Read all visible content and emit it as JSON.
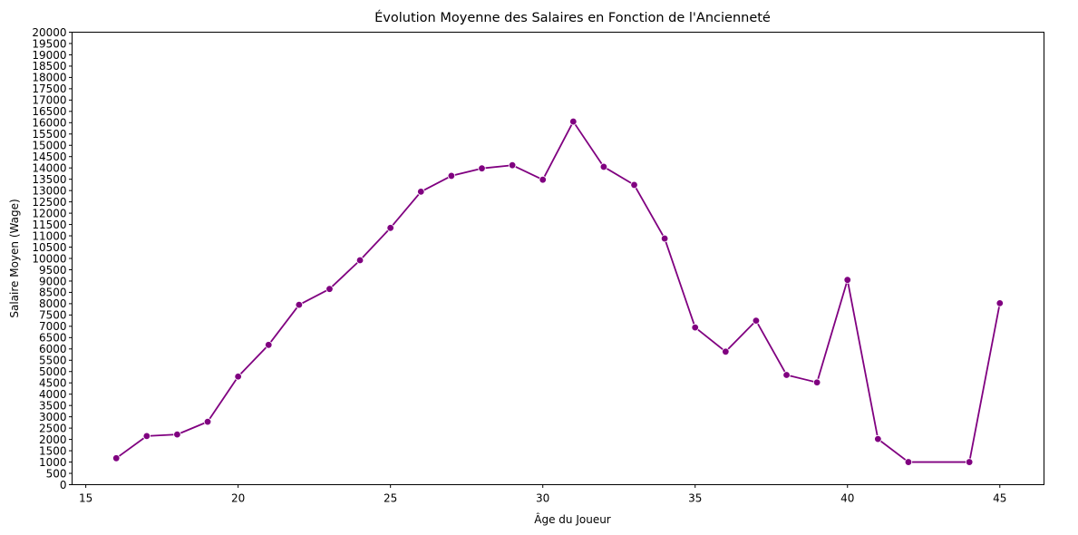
{
  "chart_data": {
    "type": "line",
    "title": "Évolution Moyenne des Salaires en Fonction de l'Ancienneté",
    "xlabel": "Âge du Joueur",
    "ylabel": "Salaire Moyen (Wage)",
    "xlim": [
      14.55,
      46.45
    ],
    "ylim": [
      0,
      20000
    ],
    "x_ticks": [
      15,
      20,
      25,
      30,
      35,
      40,
      45
    ],
    "y_tick_step": 500,
    "grid": false,
    "legend": "none",
    "series": [
      {
        "color": "#800080",
        "marker": "circle",
        "x": [
          16,
          17,
          18,
          19,
          20,
          21,
          22,
          23,
          24,
          25,
          26,
          27,
          28,
          29,
          30,
          31,
          32,
          33,
          34,
          35,
          36,
          37,
          38,
          39,
          40,
          41,
          42,
          44,
          45
        ],
        "y": [
          1170,
          2150,
          2220,
          2780,
          4780,
          6180,
          7950,
          8650,
          9920,
          11350,
          12950,
          13650,
          13980,
          14120,
          13480,
          16050,
          14050,
          13250,
          10880,
          6950,
          5880,
          7250,
          4850,
          4520,
          9050,
          2020,
          1000,
          1000,
          8020
        ]
      }
    ]
  }
}
